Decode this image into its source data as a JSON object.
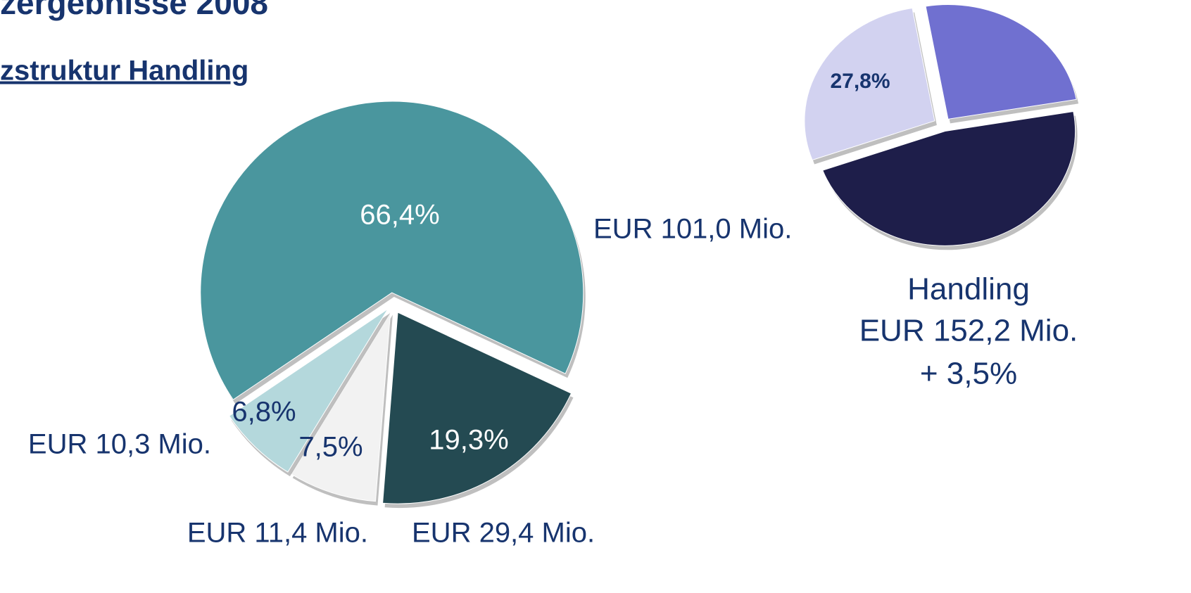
{
  "header": {
    "title": "zergebnisse 2008",
    "subtitle": "zstruktur Handling"
  },
  "chart_data": [
    {
      "type": "pie",
      "values": [
        66.4,
        19.3,
        7.5,
        6.8
      ],
      "value_labels": [
        "66,4%",
        "19,3%",
        "7,5%",
        "6,8%"
      ],
      "amount_labels": [
        "EUR 101,0 Mio.",
        "EUR 29,4 Mio.",
        "EUR 11,4 Mio.",
        "EUR 10,3 Mio."
      ],
      "colors": [
        "#4a969e",
        "#244a52",
        "#f2f2f2",
        "#b4d8dc"
      ]
    },
    {
      "type": "pie",
      "values": [
        27.8,
        25.0,
        47.2
      ],
      "value_labels": [
        "27,8%",
        null,
        null
      ],
      "colors": [
        "#d2d2f0",
        "#7070d0",
        "#1e1e4a"
      ],
      "caption": [
        "Handling",
        "EUR 152,2 Mio.",
        "+ 3,5%"
      ]
    }
  ]
}
